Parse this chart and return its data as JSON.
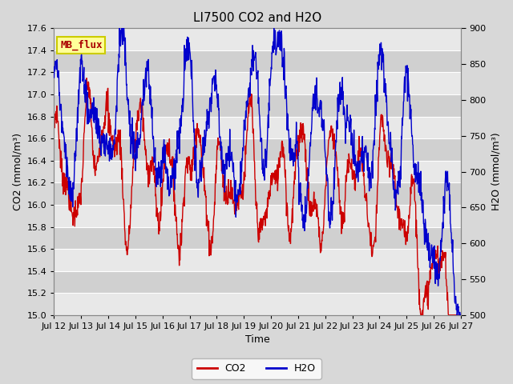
{
  "title": "LI7500 CO2 and H2O",
  "xlabel": "Time",
  "ylabel_left": "CO2 (mmol/m³)",
  "ylabel_right": "H2O (mmol/m³)",
  "co2_ylim": [
    15.0,
    17.6
  ],
  "h2o_ylim": [
    500,
    900
  ],
  "co2_yticks": [
    15.0,
    15.2,
    15.4,
    15.6,
    15.8,
    16.0,
    16.2,
    16.4,
    16.6,
    16.8,
    17.0,
    17.2,
    17.4,
    17.6
  ],
  "h2o_yticks": [
    500,
    550,
    600,
    650,
    700,
    750,
    800,
    850,
    900
  ],
  "xtick_labels": [
    "Jul 12",
    "Jul 13",
    "Jul 14",
    "Jul 15",
    "Jul 16",
    "Jul 17",
    "Jul 18",
    "Jul 19",
    "Jul 20",
    "Jul 21",
    "Jul 22",
    "Jul 23",
    "Jul 24",
    "Jul 25",
    "Jul 26",
    "Jul 27"
  ],
  "co2_color": "#cc0000",
  "h2o_color": "#0000cc",
  "fig_bg_color": "#d8d8d8",
  "plot_bg_color": "#e0e0e0",
  "band_color_light": "#d0d0d0",
  "band_color_white": "#e8e8e8",
  "legend_label_co2": "CO2",
  "legend_label_h2o": "H2O",
  "annotation_text": "MB_flux",
  "annotation_bg": "#ffff99",
  "annotation_border": "#cccc00",
  "title_fontsize": 11,
  "axis_fontsize": 9,
  "tick_fontsize": 8,
  "legend_fontsize": 9,
  "line_width": 1.0
}
